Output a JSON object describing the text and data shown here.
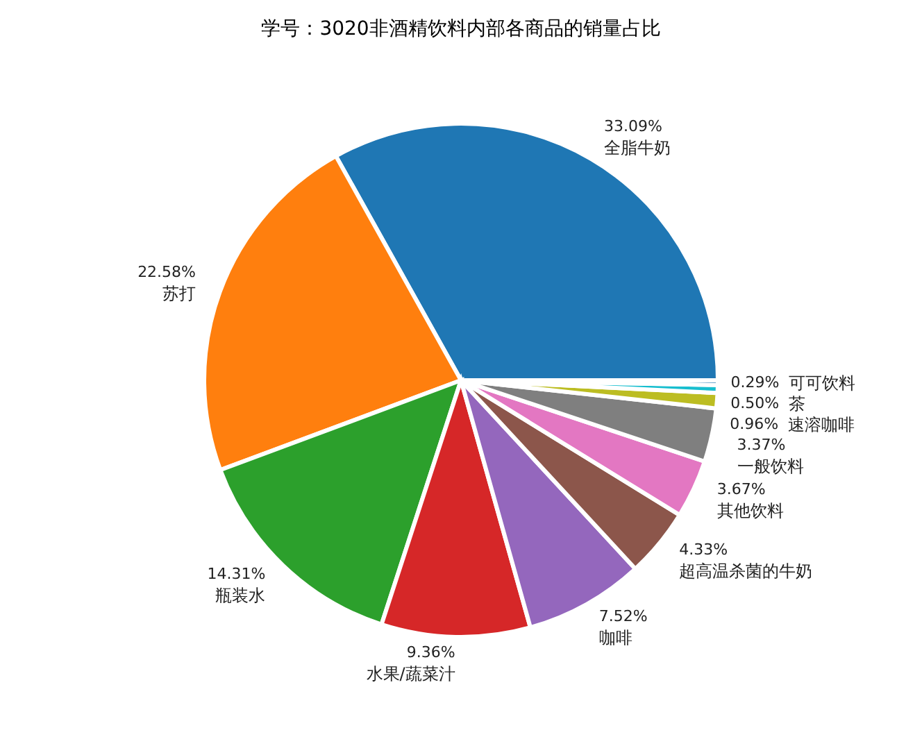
{
  "chart_data": {
    "type": "pie",
    "title": "学号：3020非酒精饮料内部各商品的销量占比",
    "categories": [
      "全脂牛奶",
      "苏打",
      "瓶装水",
      "水果/蔬菜汁",
      "咖啡",
      "超高温杀菌的牛奶",
      "其他饮料",
      "一般饮料",
      "速溶咖啡",
      "茶",
      "可可饮料"
    ],
    "values": [
      33.09,
      22.58,
      14.31,
      9.36,
      7.52,
      4.33,
      3.67,
      3.37,
      0.96,
      0.5,
      0.29
    ],
    "value_labels": [
      "33.09%",
      "22.58%",
      "14.31%",
      "9.36%",
      "7.52%",
      "4.33%",
      "3.67%",
      "3.37%",
      "0.96%",
      "0.50%",
      "0.29%"
    ],
    "colors": [
      "#1f77b4",
      "#ff7f0e",
      "#2ca02c",
      "#d62728",
      "#9467bd",
      "#8c564b",
      "#e377c2",
      "#7f7f7f",
      "#bcbd22",
      "#17becf",
      "#1f77b4"
    ],
    "legend": false
  }
}
